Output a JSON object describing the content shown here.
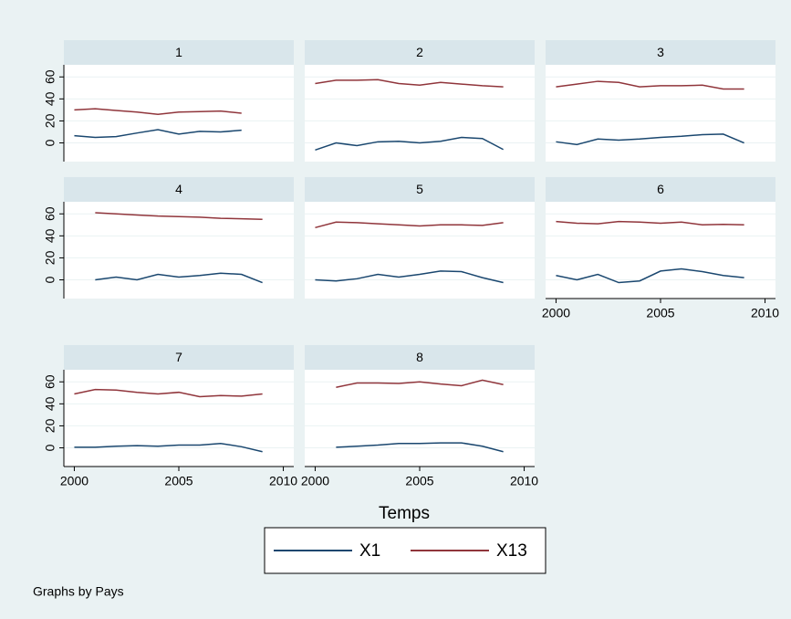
{
  "chart_data": {
    "type": "line",
    "series": [
      {
        "name": "X1",
        "color": "#1a476f"
      },
      {
        "name": "X13",
        "color": "#90353b"
      }
    ],
    "xlim": [
      1999.5,
      2010.5
    ],
    "xticks": [
      2000,
      2005,
      2010
    ],
    "ylim": [
      -17,
      71
    ],
    "yticks": [
      0,
      20,
      40,
      60
    ],
    "grid": true,
    "x_label": "Temps",
    "note": "Graphs by Pays",
    "panels": [
      {
        "title": "1",
        "x": [
          2000,
          2001,
          2002,
          2003,
          2004,
          2005,
          2006,
          2007,
          2008
        ],
        "series": [
          {
            "values": [
              6.6,
              5,
              5.7,
              9,
              12,
              8,
              10.5,
              10,
              11.5
            ]
          },
          {
            "values": [
              30,
              31,
              29.5,
              28,
              26,
              28,
              28.5,
              29,
              27
            ]
          }
        ]
      },
      {
        "title": "2",
        "x": [
          2000,
          2001,
          2002,
          2003,
          2004,
          2005,
          2006,
          2007,
          2008,
          2009
        ],
        "series": [
          {
            "values": [
              -6.5,
              0,
              -2.5,
              1,
              1.5,
              0,
              1.5,
              5,
              4,
              -6
            ]
          },
          {
            "values": [
              54,
              57,
              57,
              57.5,
              54,
              52.5,
              55,
              53.5,
              52,
              51
            ]
          }
        ]
      },
      {
        "title": "3",
        "x": [
          2000,
          2001,
          2002,
          2003,
          2004,
          2005,
          2006,
          2007,
          2008,
          2009
        ],
        "series": [
          {
            "values": [
              1,
              -1.5,
              3.5,
              2.5,
              3.5,
              5,
              6,
              7.5,
              8,
              0
            ]
          },
          {
            "values": [
              51,
              53.5,
              56,
              55,
              51,
              52,
              52,
              52.5,
              49,
              49
            ]
          }
        ]
      },
      {
        "title": "4",
        "x": [
          2001,
          2002,
          2003,
          2004,
          2005,
          2006,
          2007,
          2008,
          2009
        ],
        "series": [
          {
            "values": [
              0,
              2.5,
              0,
              5,
              2.5,
              4,
              6,
              5,
              -2.5
            ]
          },
          {
            "values": [
              61,
              60,
              59,
              58,
              57.5,
              57,
              56,
              55.5,
              55
            ]
          }
        ]
      },
      {
        "title": "5",
        "x": [
          2000,
          2001,
          2002,
          2003,
          2004,
          2005,
          2006,
          2007,
          2008,
          2009
        ],
        "series": [
          {
            "values": [
              0,
              -1,
              1,
              5,
              2.5,
              5,
              8,
              7.5,
              2,
              -2.5
            ]
          },
          {
            "values": [
              47.5,
              52.5,
              52,
              51,
              50,
              49,
              50,
              50,
              49.5,
              52
            ]
          }
        ]
      },
      {
        "title": "6",
        "x": [
          2000,
          2001,
          2002,
          2003,
          2004,
          2005,
          2006,
          2007,
          2008,
          2009
        ],
        "series": [
          {
            "values": [
              4,
              0,
              5,
              -2.5,
              -1,
              8,
              10,
              7.5,
              4,
              2
            ]
          },
          {
            "values": [
              53,
              51.5,
              51,
              53,
              52.5,
              51.5,
              52.5,
              50,
              50.5,
              50
            ]
          }
        ]
      },
      {
        "title": "7",
        "x": [
          2000,
          2001,
          2002,
          2003,
          2004,
          2005,
          2006,
          2007,
          2008,
          2009
        ],
        "series": [
          {
            "values": [
              0.5,
              0.5,
              1.5,
              2,
              1.5,
              2.5,
              2.5,
              4,
              1,
              -3.5
            ]
          },
          {
            "values": [
              49,
              53,
              52.5,
              50.5,
              49,
              50.5,
              46.5,
              47.5,
              47,
              49
            ]
          }
        ]
      },
      {
        "title": "8",
        "x": [
          2001,
          2002,
          2003,
          2004,
          2005,
          2006,
          2007,
          2008,
          2009
        ],
        "series": [
          {
            "values": [
              0.5,
              1.5,
              2.5,
              4,
              4,
              4.5,
              4.5,
              1.5,
              -3.5
            ]
          },
          {
            "values": [
              55,
              59,
              59,
              58.5,
              60,
              58,
              56.5,
              61.5,
              57.5
            ]
          }
        ]
      }
    ]
  }
}
